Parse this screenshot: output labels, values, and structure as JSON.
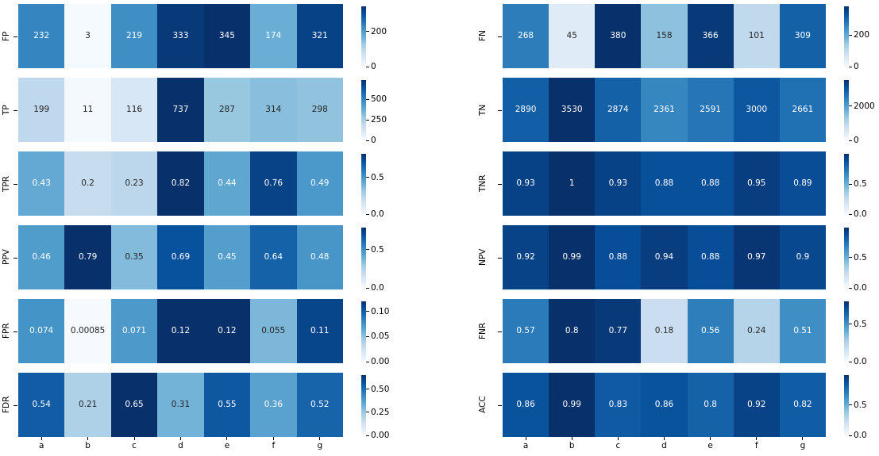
{
  "figure": {
    "background": "#ffffff",
    "colormap_name": "Blues",
    "colormap_stops": [
      "#f7fbff",
      "#deebf7",
      "#c6dbef",
      "#9ecae1",
      "#6baed6",
      "#4292c6",
      "#2171b5",
      "#08519c",
      "#08306b"
    ],
    "annotation_dark_text": "#262626",
    "annotation_light_text": "#ffffff"
  },
  "chart_data": [
    {
      "type": "heatmap",
      "position": "left",
      "categories": [
        "a",
        "b",
        "c",
        "d",
        "e",
        "f",
        "g"
      ],
      "legend_position": "right-colorbar-per-row",
      "grid": false,
      "rows": [
        {
          "label": "FP",
          "values": [
            232,
            3,
            219,
            333,
            345,
            174,
            321
          ],
          "vmin": 0,
          "vmax": 345,
          "cbar_ticks": [
            {
              "value": 200,
              "label": "200"
            },
            {
              "value": 0,
              "label": "0"
            }
          ]
        },
        {
          "label": "TP",
          "values": [
            199,
            11,
            116,
            737,
            287,
            314,
            298
          ],
          "vmin": 0,
          "vmax": 737,
          "cbar_ticks": [
            {
              "value": 500,
              "label": "500"
            },
            {
              "value": 250,
              "label": "250"
            },
            {
              "value": 0,
              "label": "0"
            }
          ]
        },
        {
          "label": "TPR",
          "values": [
            0.43,
            0.2,
            0.23,
            0.82,
            0.44,
            0.76,
            0.49
          ],
          "vmin": 0,
          "vmax": 0.82,
          "cbar_ticks": [
            {
              "value": 0.5,
              "label": "0.5"
            },
            {
              "value": 0,
              "label": "0.0"
            }
          ]
        },
        {
          "label": "PPV",
          "values": [
            0.46,
            0.79,
            0.35,
            0.69,
            0.45,
            0.64,
            0.48
          ],
          "vmin": 0,
          "vmax": 0.79,
          "cbar_ticks": [
            {
              "value": 0.5,
              "label": "0.5"
            },
            {
              "value": 0,
              "label": "0.0"
            }
          ]
        },
        {
          "label": "FPR",
          "values": [
            0.074,
            0.00085,
            0.071,
            0.12,
            0.12,
            0.055,
            0.11
          ],
          "vmin": 0,
          "vmax": 0.12,
          "cbar_ticks": [
            {
              "value": 0.1,
              "label": "0.10"
            },
            {
              "value": 0.05,
              "label": "0.05"
            },
            {
              "value": 0,
              "label": "0.00"
            }
          ]
        },
        {
          "label": "FDR",
          "values": [
            0.54,
            0.21,
            0.65,
            0.31,
            0.55,
            0.36,
            0.52
          ],
          "vmin": 0,
          "vmax": 0.65,
          "cbar_ticks": [
            {
              "value": 0.5,
              "label": "0.50"
            },
            {
              "value": 0.25,
              "label": "0.25"
            },
            {
              "value": 0,
              "label": "0.00"
            }
          ]
        }
      ]
    },
    {
      "type": "heatmap",
      "position": "right",
      "categories": [
        "a",
        "b",
        "c",
        "d",
        "e",
        "f",
        "g"
      ],
      "legend_position": "right-colorbar-per-row",
      "grid": false,
      "rows": [
        {
          "label": "FN",
          "values": [
            268,
            45,
            380,
            158,
            366,
            101,
            309
          ],
          "vmin": 0,
          "vmax": 380,
          "cbar_ticks": [
            {
              "value": 200,
              "label": "200"
            },
            {
              "value": 0,
              "label": "0"
            }
          ]
        },
        {
          "label": "TN",
          "values": [
            2890,
            3530,
            2874,
            2361,
            2591,
            3000,
            2661
          ],
          "vmin": 0,
          "vmax": 3530,
          "cbar_ticks": [
            {
              "value": 2000,
              "label": "2000"
            },
            {
              "value": 0,
              "label": "0"
            }
          ]
        },
        {
          "label": "TNR",
          "values": [
            0.93,
            1,
            0.93,
            0.88,
            0.88,
            0.95,
            0.89
          ],
          "vmin": 0,
          "vmax": 1,
          "cbar_ticks": [
            {
              "value": 0.5,
              "label": "0.5"
            },
            {
              "value": 0,
              "label": "0.0"
            }
          ]
        },
        {
          "label": "NPV",
          "values": [
            0.92,
            0.99,
            0.88,
            0.94,
            0.88,
            0.97,
            0.9
          ],
          "vmin": 0,
          "vmax": 0.99,
          "cbar_ticks": [
            {
              "value": 0.5,
              "label": "0.5"
            },
            {
              "value": 0,
              "label": "0.0"
            }
          ]
        },
        {
          "label": "FNR",
          "values": [
            0.57,
            0.8,
            0.77,
            0.18,
            0.56,
            0.24,
            0.51
          ],
          "vmin": 0,
          "vmax": 0.8,
          "cbar_ticks": [
            {
              "value": 0.5,
              "label": "0.5"
            },
            {
              "value": 0,
              "label": "0.0"
            }
          ]
        },
        {
          "label": "ACC",
          "values": [
            0.86,
            0.99,
            0.83,
            0.86,
            0.8,
            0.92,
            0.82
          ],
          "vmin": 0,
          "vmax": 0.99,
          "cbar_ticks": [
            {
              "value": 0.5,
              "label": "0.5"
            },
            {
              "value": 0,
              "label": "0.0"
            }
          ]
        }
      ]
    }
  ]
}
